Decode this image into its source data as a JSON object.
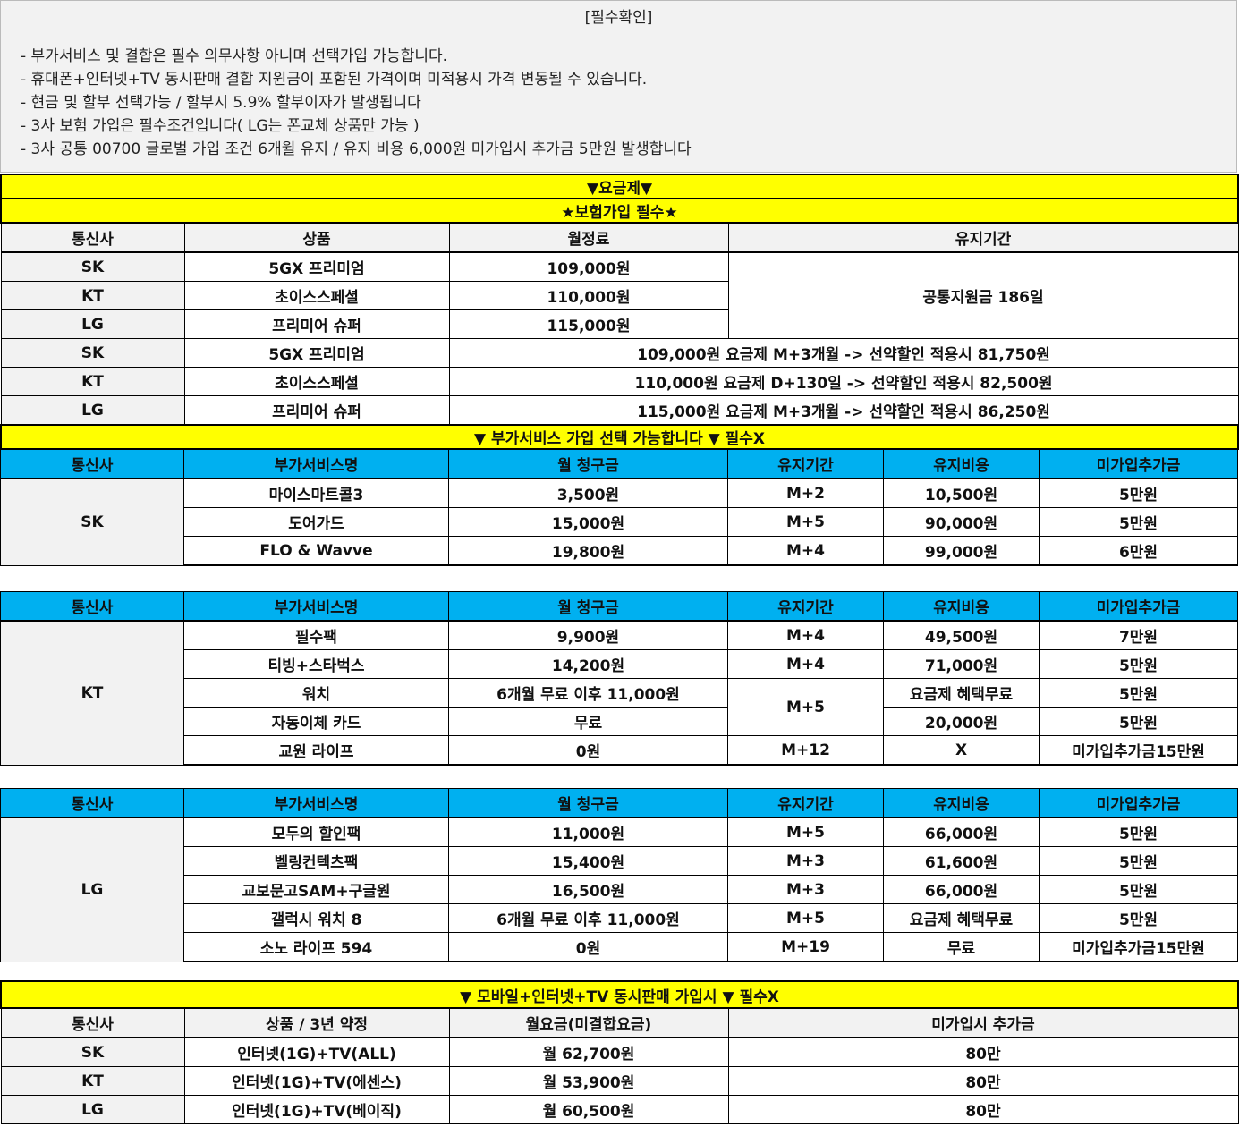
{
  "notice": {
    "title": "[필수확인]",
    "lines": [
      "- 부가서비스 및 결합은 필수 의무사항 아니며 선택가입 가능합니다.",
      "- 휴대폰+인터넷+TV 동시판매 결합 지원금이 포함된 가격이며 미적용시 가격 변동될 수 있습니다.",
      "- 현금 및 할부 선택가능 / 할부시 5.9% 할부이자가 발생됩니다",
      "- 3사 보험 가입은 필수조건입니다( LG는 폰교체 상품만 가능 )",
      "- 3사 공통 00700 글로벌 가입 조건 6개월 유지 / 유지 비용 6,000원 미가입시 추가금 5만원 발생합니다"
    ]
  },
  "colors": {
    "yellow": "#ffff00",
    "blue": "#00b0f0",
    "gray": "#f2f2f2"
  },
  "plans": {
    "banner": "▼요금제▼",
    "sub_banner": "★보험가입 필수★",
    "headers": [
      "통신사",
      "상품",
      "월정료",
      "유지기간"
    ],
    "rows": [
      {
        "carrier": "SK",
        "product": "5GX 프리미엄",
        "fee": "109,000원"
      },
      {
        "carrier": "KT",
        "product": "초이스스페셜",
        "fee": "110,000원"
      },
      {
        "carrier": "LG",
        "product": "프리미어 슈퍼",
        "fee": "115,000원"
      }
    ],
    "support": "공통지원금 186일",
    "discount_rows": [
      {
        "carrier": "SK",
        "product": "5GX 프리미엄",
        "text": "109,000원 요금제 M+3개월 -> 선약할인 적용시 81,750원"
      },
      {
        "carrier": "KT",
        "product": "초이스스페셜",
        "text": "110,000원 요금제 D+130일 -> 선약할인 적용시 82,500원"
      },
      {
        "carrier": "LG",
        "product": "프리미어 슈퍼",
        "text": "115,000원 요금제 M+3개월 -> 선약할인 적용시 86,250원"
      }
    ]
  },
  "addons": {
    "banner": "▼ 부가서비스 가입 선택 가능합니다 ▼ 필수X",
    "headers": [
      "통신사",
      "부가서비스명",
      "월 청구금",
      "유지기간",
      "유지비용",
      "미가입추가금"
    ],
    "sk": {
      "carrier": "SK",
      "items": [
        {
          "name": "마이스마트콜3",
          "fee": "3,500원",
          "period": "M+2",
          "cost": "10,500원",
          "penalty": "5만원"
        },
        {
          "name": "도어가드",
          "fee": "15,000원",
          "period": "M+5",
          "cost": "90,000원",
          "penalty": "5만원"
        },
        {
          "name": "FLO & Wavve",
          "fee": "19,800원",
          "period": "M+4",
          "cost": "99,000원",
          "penalty": "6만원"
        }
      ]
    },
    "kt": {
      "carrier": "KT",
      "items": [
        {
          "name": "필수팩",
          "fee": "9,900원",
          "period": "M+4",
          "cost": "49,500원",
          "penalty": "7만원"
        },
        {
          "name": "티빙+스타벅스",
          "fee": "14,200원",
          "period": "M+4",
          "cost": "71,000원",
          "penalty": "5만원"
        },
        {
          "name": "워치",
          "fee": "6개월 무료 이후 11,000원",
          "period": "M+5",
          "cost": "요금제 혜택무료",
          "penalty": "5만원"
        },
        {
          "name": "자동이체 카드",
          "fee": "무료",
          "cost": "20,000원",
          "penalty": "5만원"
        },
        {
          "name": "교원 라이프",
          "fee": "0원",
          "period": "M+12",
          "cost": "X",
          "penalty": "미가입추가금15만원"
        }
      ]
    },
    "lg": {
      "carrier": "LG",
      "items": [
        {
          "name": "모두의 할인팩",
          "fee": "11,000원",
          "period": "M+5",
          "cost": "66,000원",
          "penalty": "5만원"
        },
        {
          "name": "벨링컨텍츠팩",
          "fee": "15,400원",
          "period": "M+3",
          "cost": "61,600원",
          "penalty": "5만원"
        },
        {
          "name": "교보문고SAM+구글원",
          "fee": "16,500원",
          "period": "M+3",
          "cost": "66,000원",
          "penalty": "5만원"
        },
        {
          "name": "갤럭시 워치 8",
          "fee": "6개월 무료 이후 11,000원",
          "period": "M+5",
          "cost": "요금제 혜택무료",
          "penalty": "5만원"
        },
        {
          "name": "소노 라이프 594",
          "fee": "0원",
          "period": "M+19",
          "cost": "무료",
          "penalty": "미가입추가금15만원"
        }
      ]
    }
  },
  "bundle": {
    "banner": "▼ 모바일+인터넷+TV 동시판매 가입시 ▼ 필수X",
    "headers": [
      "통신사",
      "상품 / 3년 약정",
      "월요금(미결합요금)",
      "미가입시 추가금"
    ],
    "rows": [
      {
        "carrier": "SK",
        "product": "인터넷(1G)+TV(ALL)",
        "fee": "월 62,700원",
        "penalty": "80만"
      },
      {
        "carrier": "KT",
        "product": "인터넷(1G)+TV(에센스)",
        "fee": "월 53,900원",
        "penalty": "80만"
      },
      {
        "carrier": "LG",
        "product": "인터넷(1G)+TV(베이직)",
        "fee": "월 60,500원",
        "penalty": "80만"
      }
    ]
  }
}
